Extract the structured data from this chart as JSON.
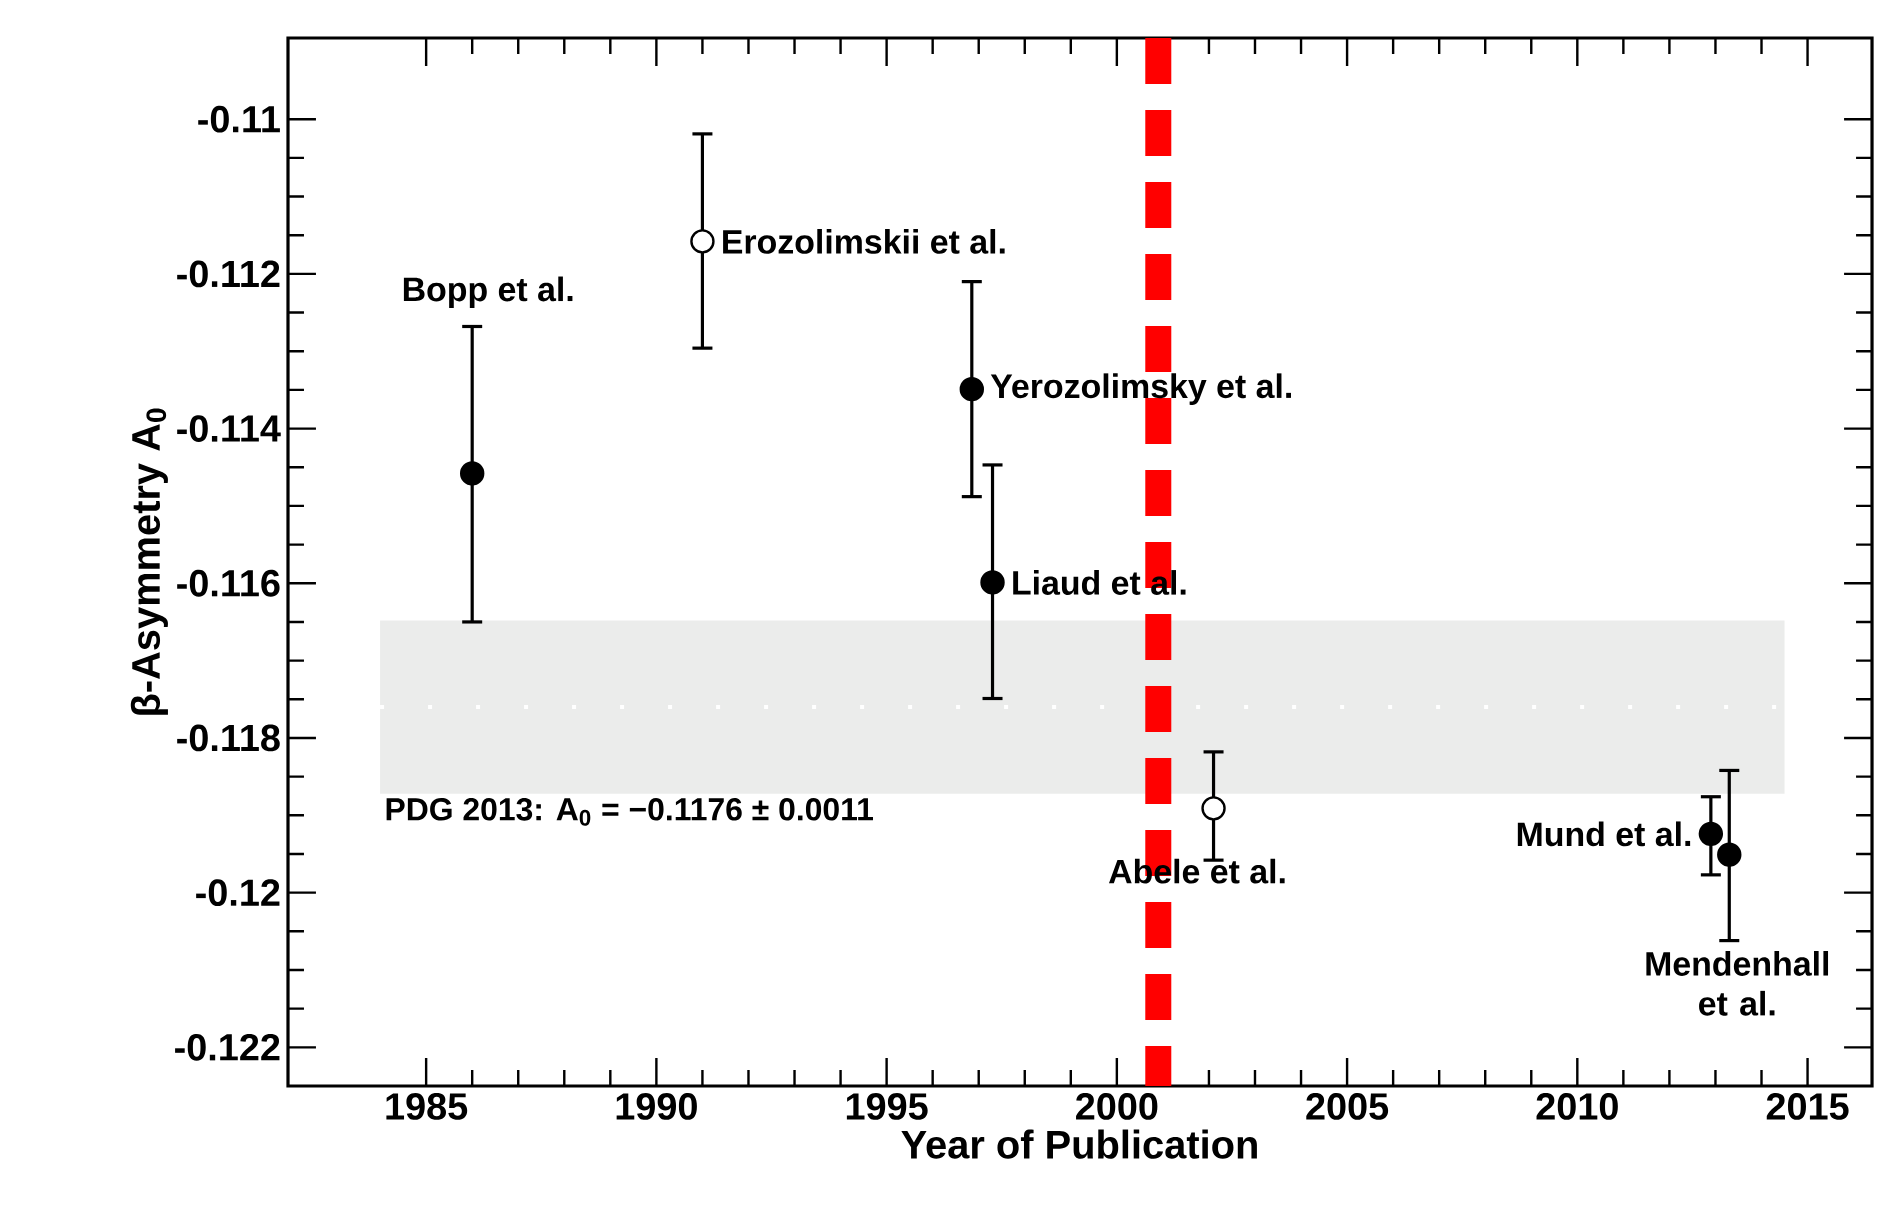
{
  "chart_data": {
    "type": "scatter",
    "xlabel": "Year of Publication",
    "ylabel": "β-Asymmetry A$_{0}$",
    "xlim": [
      1982,
      2016.4
    ],
    "xticks": [
      1985,
      1990,
      1995,
      2000,
      2005,
      2010,
      2015
    ],
    "ylim": [
      -0.1225,
      -0.10895
    ],
    "yticks": [
      -0.122,
      -0.12,
      -0.118,
      -0.116,
      -0.114,
      -0.112,
      -0.11
    ],
    "marker": "circle",
    "grid": false,
    "series": [
      {
        "color": "#000000",
        "x": [
          1986,
          1996.85,
          1997.3,
          2012.9,
          2013.3
        ],
        "values": [
          -0.11458,
          -0.11349,
          -0.11599,
          -0.11924,
          -0.11951
        ],
        "errors": [
          [
            -0.1165,
            -0.11268
          ],
          [
            -0.11488,
            -0.1121
          ],
          [
            -0.11749,
            -0.11447
          ],
          [
            -0.11977,
            -0.11876
          ],
          [
            -0.12062,
            -0.11842
          ]
        ]
      },
      {
        "color": "#ffffff",
        "x": [
          1991,
          2002.1
        ],
        "values": [
          -0.11158,
          -0.11891
        ],
        "errors": [
          [
            -0.11296,
            -0.11019
          ],
          [
            -0.11958,
            -0.11818
          ]
        ]
      }
    ],
    "annotations": [
      {
        "text": "Bopp et al.",
        "x": 1986,
        "y": -0.11268
      },
      {
        "text": "Erozolimskii et al.",
        "x": 1991,
        "y": -0.11158
      },
      {
        "text": "Yerozolimsky et al.",
        "x": 1996.85,
        "y": -0.11349
      },
      {
        "text": "Liaud et al.",
        "x": 1997.3,
        "y": -0.11599
      },
      {
        "text": "Abele et al.",
        "x": 2002.1,
        "y": -0.11891
      },
      {
        "text": "Mund et al.",
        "x": 2012.9,
        "y": -0.11924
      },
      {
        "text": "Mendenhall et al.",
        "x": 2013.3,
        "y": -0.12062
      }
    ],
    "bands": [
      {
        "axis": "y",
        "from": -0.11648,
        "to": -0.11872,
        "color": "#ebeceb",
        "label": "PDG 2013: A$_{0}$ = −0.1176 ± 0.0011"
      }
    ],
    "ref_lines": [
      {
        "axis": "y",
        "value": -0.1176,
        "color": "#ffffff",
        "line_style": "dotted"
      },
      {
        "axis": "x",
        "value": 2000.9,
        "color": "#ff0000",
        "line_style": "dashed"
      }
    ]
  }
}
